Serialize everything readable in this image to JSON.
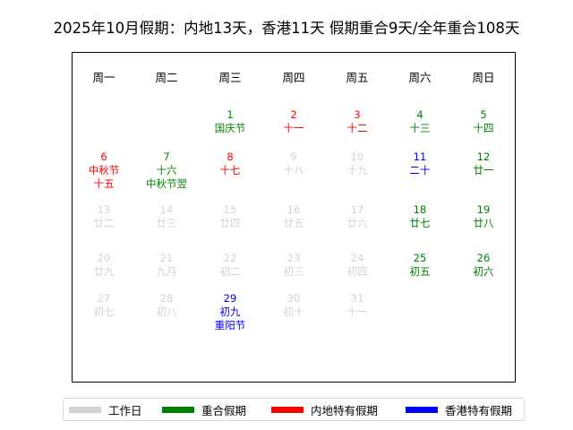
{
  "title": "2025年10月假期：内地13天，香港11天 假期重合9天/全年重合108天",
  "colors": {
    "work": "#d3d3d3",
    "both": "#008000",
    "mainland": "#ff0000",
    "hk": "#0000ff"
  },
  "weekdays": [
    "周一",
    "周二",
    "周三",
    "周四",
    "周五",
    "周六",
    "周日"
  ],
  "days": [
    {
      "day": "1",
      "lunar": "国庆节",
      "extra": "",
      "type": "both"
    },
    {
      "day": "2",
      "lunar": "十一",
      "extra": "",
      "type": "mainland"
    },
    {
      "day": "3",
      "lunar": "十二",
      "extra": "",
      "type": "mainland"
    },
    {
      "day": "4",
      "lunar": "十三",
      "extra": "",
      "type": "both"
    },
    {
      "day": "5",
      "lunar": "十四",
      "extra": "",
      "type": "both"
    },
    {
      "day": "6",
      "lunar": "中秋节",
      "extra": "十五",
      "type": "mainland"
    },
    {
      "day": "7",
      "lunar": "十六",
      "extra": "中秋节翌",
      "type": "both"
    },
    {
      "day": "8",
      "lunar": "十七",
      "extra": "",
      "type": "mainland"
    },
    {
      "day": "9",
      "lunar": "十八",
      "extra": "",
      "type": "work"
    },
    {
      "day": "10",
      "lunar": "十九",
      "extra": "",
      "type": "work"
    },
    {
      "day": "11",
      "lunar": "二十",
      "extra": "",
      "type": "hk"
    },
    {
      "day": "12",
      "lunar": "廿一",
      "extra": "",
      "type": "both"
    },
    {
      "day": "13",
      "lunar": "廿二",
      "extra": "",
      "type": "work"
    },
    {
      "day": "14",
      "lunar": "廿三",
      "extra": "",
      "type": "work"
    },
    {
      "day": "15",
      "lunar": "廿四",
      "extra": "",
      "type": "work"
    },
    {
      "day": "16",
      "lunar": "廿五",
      "extra": "",
      "type": "work"
    },
    {
      "day": "17",
      "lunar": "廿六",
      "extra": "",
      "type": "work"
    },
    {
      "day": "18",
      "lunar": "廿七",
      "extra": "",
      "type": "both"
    },
    {
      "day": "19",
      "lunar": "廿八",
      "extra": "",
      "type": "both"
    },
    {
      "day": "20",
      "lunar": "廿九",
      "extra": "",
      "type": "work"
    },
    {
      "day": "21",
      "lunar": "九月",
      "extra": "",
      "type": "work"
    },
    {
      "day": "22",
      "lunar": "初二",
      "extra": "",
      "type": "work"
    },
    {
      "day": "23",
      "lunar": "初三",
      "extra": "",
      "type": "work"
    },
    {
      "day": "24",
      "lunar": "初四",
      "extra": "",
      "type": "work"
    },
    {
      "day": "25",
      "lunar": "初五",
      "extra": "",
      "type": "both"
    },
    {
      "day": "26",
      "lunar": "初六",
      "extra": "",
      "type": "both"
    },
    {
      "day": "27",
      "lunar": "初七",
      "extra": "",
      "type": "work"
    },
    {
      "day": "28",
      "lunar": "初八",
      "extra": "",
      "type": "work"
    },
    {
      "day": "29",
      "lunar": "初九",
      "extra": "重阳节",
      "type": "hk"
    },
    {
      "day": "30",
      "lunar": "初十",
      "extra": "",
      "type": "work"
    },
    {
      "day": "31",
      "lunar": "十一",
      "extra": "",
      "type": "work"
    }
  ],
  "legend": [
    {
      "label": "工作日",
      "type": "work"
    },
    {
      "label": "重合假期",
      "type": "both"
    },
    {
      "label": "内地特有假期",
      "type": "mainland"
    },
    {
      "label": "香港特有假期",
      "type": "hk"
    }
  ]
}
